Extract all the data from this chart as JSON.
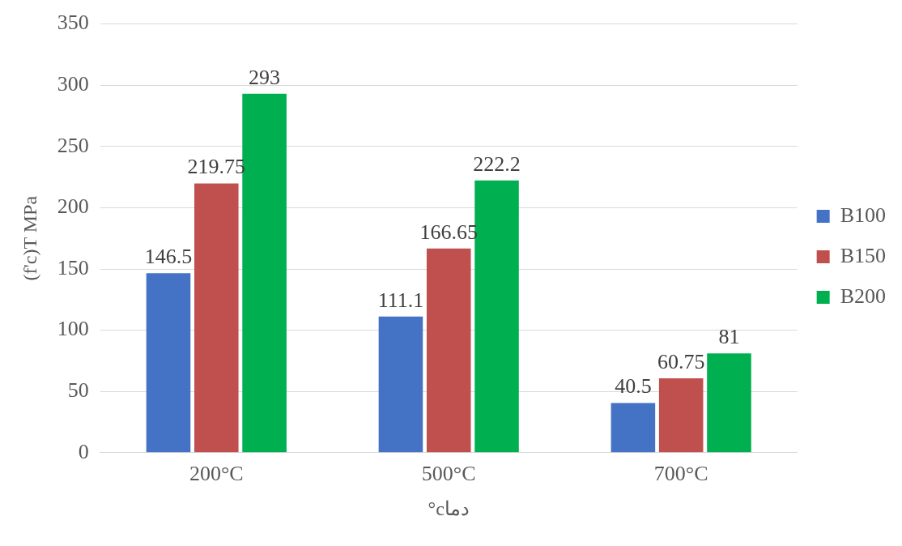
{
  "chart_data": {
    "type": "bar",
    "xlabel": "دماc°",
    "ylabel": "(f'c)T MPa",
    "categories": [
      "200°C",
      "500°C",
      "700°C"
    ],
    "series": [
      {
        "name": "B100",
        "color": "#4472c4",
        "values": [
          146.5,
          111.1,
          40.5
        ]
      },
      {
        "name": "B150",
        "color": "#c0504d",
        "values": [
          219.75,
          166.65,
          60.75
        ]
      },
      {
        "name": "B200",
        "color": "#00b050",
        "values": [
          293,
          222.2,
          81
        ]
      }
    ],
    "ylim": [
      0,
      350
    ],
    "yticks": [
      0,
      50,
      100,
      150,
      200,
      250,
      300,
      350
    ],
    "grid": "y",
    "legend": "right",
    "data_labels": true
  }
}
